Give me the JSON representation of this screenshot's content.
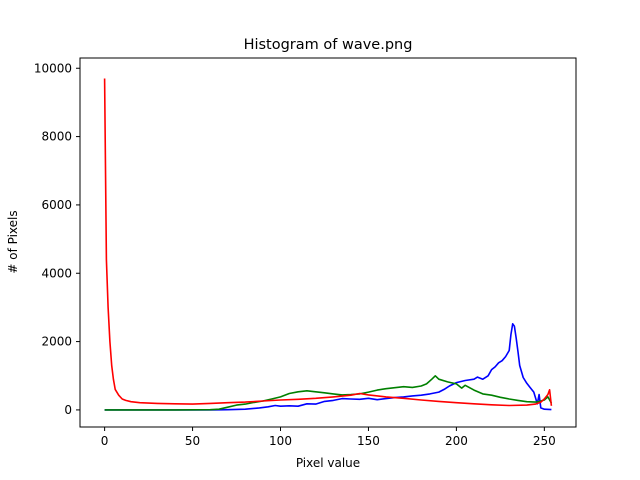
{
  "chart_data": {
    "type": "line",
    "title": "Histogram of wave.png",
    "xlabel": "Pixel value",
    "ylabel": "# of Pixels",
    "xlim": [
      -14,
      268
    ],
    "ylim": [
      -500,
      10300
    ],
    "xticks": [
      0,
      50,
      100,
      150,
      200,
      250
    ],
    "yticks": [
      0,
      2000,
      4000,
      6000,
      8000,
      10000
    ],
    "xtick_labels": [
      "0",
      "50",
      "100",
      "150",
      "200",
      "250"
    ],
    "ytick_labels": [
      "0",
      "2000",
      "4000",
      "6000",
      "8000",
      "10000"
    ],
    "grid": false,
    "legend": "none",
    "series": [
      {
        "color": "#0000ff",
        "points": [
          [
            0,
            0
          ],
          [
            20,
            0
          ],
          [
            40,
            0
          ],
          [
            60,
            0
          ],
          [
            70,
            5
          ],
          [
            80,
            20
          ],
          [
            88,
            60
          ],
          [
            93,
            90
          ],
          [
            97,
            130
          ],
          [
            100,
            110
          ],
          [
            105,
            120
          ],
          [
            110,
            110
          ],
          [
            115,
            180
          ],
          [
            120,
            170
          ],
          [
            125,
            250
          ],
          [
            130,
            280
          ],
          [
            135,
            330
          ],
          [
            140,
            320
          ],
          [
            145,
            310
          ],
          [
            150,
            340
          ],
          [
            155,
            300
          ],
          [
            160,
            330
          ],
          [
            165,
            360
          ],
          [
            170,
            380
          ],
          [
            175,
            410
          ],
          [
            180,
            430
          ],
          [
            185,
            470
          ],
          [
            190,
            520
          ],
          [
            193,
            600
          ],
          [
            196,
            700
          ],
          [
            200,
            800
          ],
          [
            205,
            860
          ],
          [
            210,
            900
          ],
          [
            212,
            960
          ],
          [
            215,
            900
          ],
          [
            218,
            1000
          ],
          [
            220,
            1180
          ],
          [
            222,
            1260
          ],
          [
            224,
            1380
          ],
          [
            226,
            1440
          ],
          [
            228,
            1560
          ],
          [
            230,
            1740
          ],
          [
            231,
            2200
          ],
          [
            232,
            2520
          ],
          [
            233,
            2450
          ],
          [
            234,
            2100
          ],
          [
            235,
            1700
          ],
          [
            236,
            1300
          ],
          [
            238,
            950
          ],
          [
            240,
            780
          ],
          [
            242,
            650
          ],
          [
            244,
            520
          ],
          [
            246,
            180
          ],
          [
            247,
            450
          ],
          [
            248,
            60
          ],
          [
            250,
            20
          ],
          [
            254,
            10
          ]
        ]
      },
      {
        "color": "#008000",
        "points": [
          [
            0,
            0
          ],
          [
            20,
            0
          ],
          [
            40,
            0
          ],
          [
            60,
            5
          ],
          [
            65,
            20
          ],
          [
            70,
            80
          ],
          [
            75,
            140
          ],
          [
            80,
            170
          ],
          [
            85,
            220
          ],
          [
            90,
            260
          ],
          [
            95,
            320
          ],
          [
            100,
            380
          ],
          [
            105,
            480
          ],
          [
            110,
            530
          ],
          [
            115,
            560
          ],
          [
            120,
            530
          ],
          [
            125,
            500
          ],
          [
            130,
            470
          ],
          [
            135,
            440
          ],
          [
            140,
            450
          ],
          [
            145,
            470
          ],
          [
            150,
            520
          ],
          [
            155,
            580
          ],
          [
            160,
            620
          ],
          [
            165,
            650
          ],
          [
            170,
            680
          ],
          [
            175,
            660
          ],
          [
            180,
            700
          ],
          [
            183,
            760
          ],
          [
            186,
            900
          ],
          [
            188,
            1000
          ],
          [
            190,
            900
          ],
          [
            195,
            820
          ],
          [
            200,
            760
          ],
          [
            203,
            640
          ],
          [
            205,
            720
          ],
          [
            210,
            580
          ],
          [
            215,
            470
          ],
          [
            220,
            430
          ],
          [
            225,
            370
          ],
          [
            230,
            320
          ],
          [
            235,
            280
          ],
          [
            240,
            240
          ],
          [
            245,
            230
          ],
          [
            248,
            260
          ],
          [
            250,
            290
          ],
          [
            252,
            380
          ],
          [
            254,
            200
          ]
        ]
      },
      {
        "color": "#ff0000",
        "points": [
          [
            0,
            9700
          ],
          [
            1,
            4400
          ],
          [
            2,
            3000
          ],
          [
            3,
            2000
          ],
          [
            4,
            1300
          ],
          [
            5,
            900
          ],
          [
            6,
            600
          ],
          [
            8,
            430
          ],
          [
            10,
            320
          ],
          [
            12,
            280
          ],
          [
            15,
            240
          ],
          [
            20,
            210
          ],
          [
            25,
            200
          ],
          [
            30,
            190
          ],
          [
            40,
            180
          ],
          [
            50,
            170
          ],
          [
            60,
            190
          ],
          [
            70,
            210
          ],
          [
            80,
            230
          ],
          [
            90,
            260
          ],
          [
            100,
            290
          ],
          [
            110,
            310
          ],
          [
            120,
            340
          ],
          [
            130,
            380
          ],
          [
            140,
            430
          ],
          [
            145,
            480
          ],
          [
            150,
            440
          ],
          [
            160,
            380
          ],
          [
            170,
            340
          ],
          [
            180,
            290
          ],
          [
            190,
            250
          ],
          [
            200,
            210
          ],
          [
            210,
            180
          ],
          [
            220,
            150
          ],
          [
            230,
            130
          ],
          [
            240,
            140
          ],
          [
            245,
            170
          ],
          [
            248,
            230
          ],
          [
            250,
            320
          ],
          [
            252,
            450
          ],
          [
            253,
            590
          ],
          [
            254,
            120
          ]
        ]
      }
    ]
  }
}
